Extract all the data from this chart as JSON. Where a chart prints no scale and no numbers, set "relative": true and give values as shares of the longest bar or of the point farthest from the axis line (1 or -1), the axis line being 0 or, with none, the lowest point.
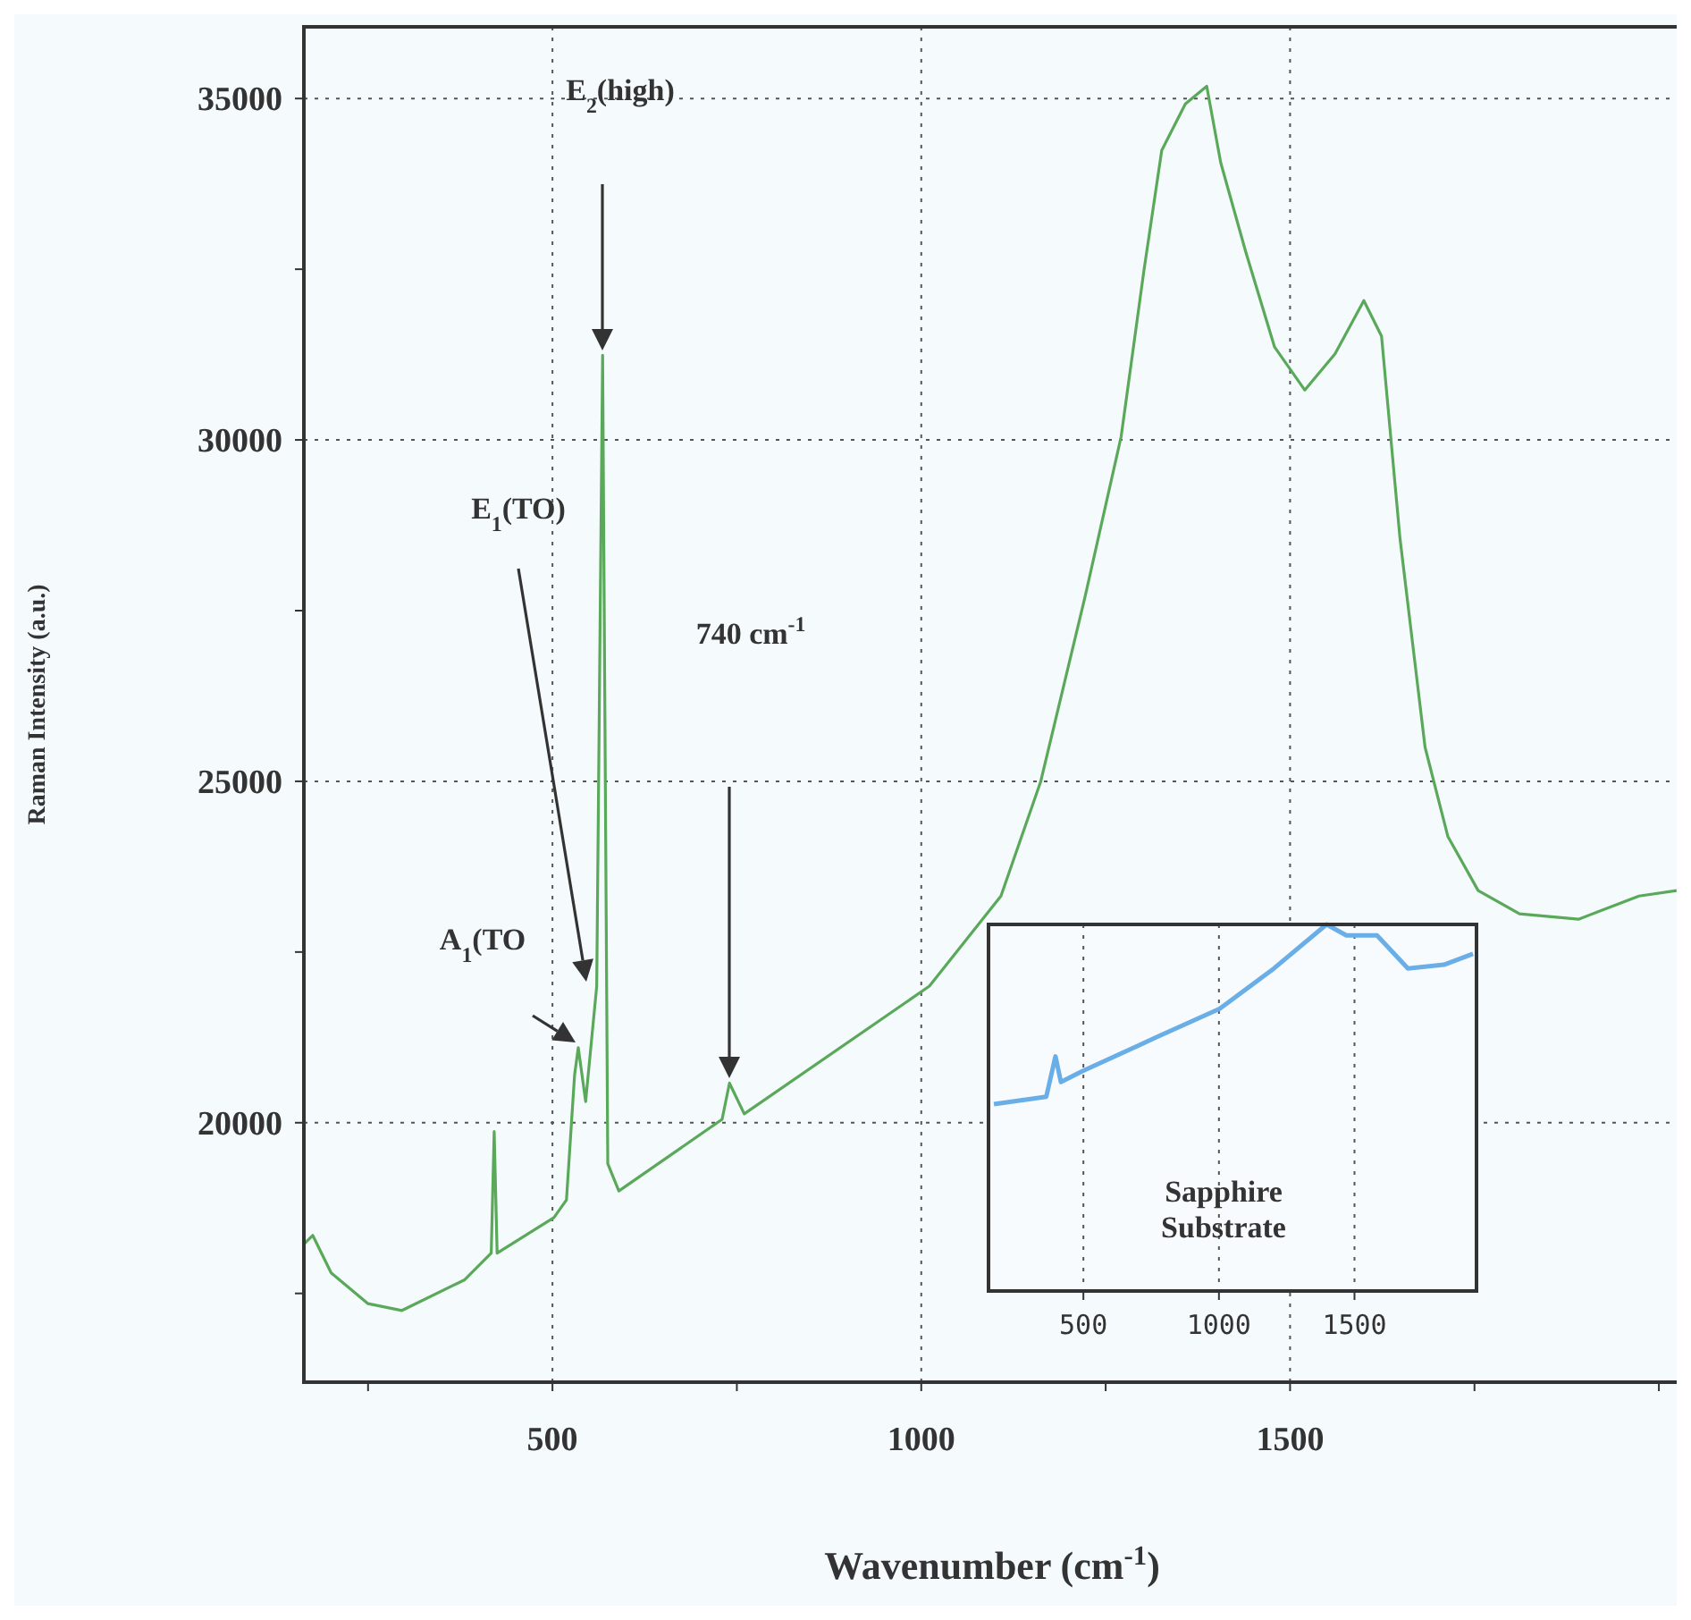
{
  "chart_data": [
    {
      "type": "line",
      "xlabel": "Wavenumber (cm$^{-1}$)",
      "ylabel": "Raman Intensity (a.u.)",
      "xlim": [
        163,
        2029
      ],
      "ylim": [
        16200,
        36050
      ],
      "xticks": [
        {
          "value": 250,
          "label": null
        },
        500,
        {
          "value": 750,
          "label": null
        },
        1000,
        {
          "value": 1250,
          "label": null
        },
        1500,
        {
          "value": 1750,
          "label": null
        },
        {
          "value": 2000,
          "label": null
        }
      ],
      "yticks": [
        {
          "value": 17500,
          "label": null
        },
        20000,
        {
          "value": 22500,
          "label": null
        },
        25000,
        {
          "value": 27500,
          "label": null
        },
        30000,
        {
          "value": 32500,
          "label": null
        },
        35000
      ],
      "grid": true,
      "line_style": "solid",
      "series": [
        {
          "color": "#5aa85a",
          "x": [
            163,
            175,
            200,
            250,
            296,
            381,
            417,
            421,
            425,
            502,
            519,
            530,
            535,
            545,
            560,
            568,
            575,
            590,
            730,
            740,
            760,
            1011,
            1108,
            1162,
            1222,
            1271,
            1302,
            1326,
            1358,
            1387,
            1406,
            1440,
            1479,
            1520,
            1561,
            1600,
            1624,
            1649,
            1683,
            1714,
            1755,
            1811,
            1891,
            1973,
            2024
          ],
          "values": [
            18220,
            18350,
            17800,
            17350,
            17250,
            17700,
            18090,
            19870,
            18090,
            18610,
            18870,
            20700,
            21100,
            20310,
            22000,
            31240,
            19400,
            19000,
            20050,
            20580,
            20130,
            22000,
            23320,
            25000,
            27700,
            30050,
            32490,
            34240,
            34920,
            35180,
            34060,
            32750,
            31360,
            30730,
            31260,
            32040,
            31520,
            28560,
            25500,
            24190,
            23400,
            23060,
            22980,
            23320,
            23400
          ]
        }
      ],
      "annotations": [
        "E$_{2}$(high)",
        "E$_{1}$(TO)",
        "A$_{1}$(TO",
        "740 cm$^{-1}$"
      ]
    },
    {
      "type": "line",
      "relative": true,
      "xlim": [
        150,
        1950
      ],
      "xticks": [
        500,
        1000,
        1500
      ],
      "tick_labels": "x",
      "grid": "x",
      "line_style": "solid",
      "series": [
        {
          "color": "#6aaee8",
          "x": [
            170,
            363,
            397,
            417,
            497,
            763,
            1003,
            1203,
            1397,
            1470,
            1583,
            1697,
            1830,
            1937
          ],
          "values": [
            0.51,
            0.53,
            0.64,
            0.57,
            0.6,
            0.69,
            0.77,
            0.88,
            1,
            0.97,
            0.97,
            0.88,
            0.89,
            0.92
          ]
        }
      ],
      "annotations": [
        "Sapphire Substrate"
      ]
    }
  ]
}
